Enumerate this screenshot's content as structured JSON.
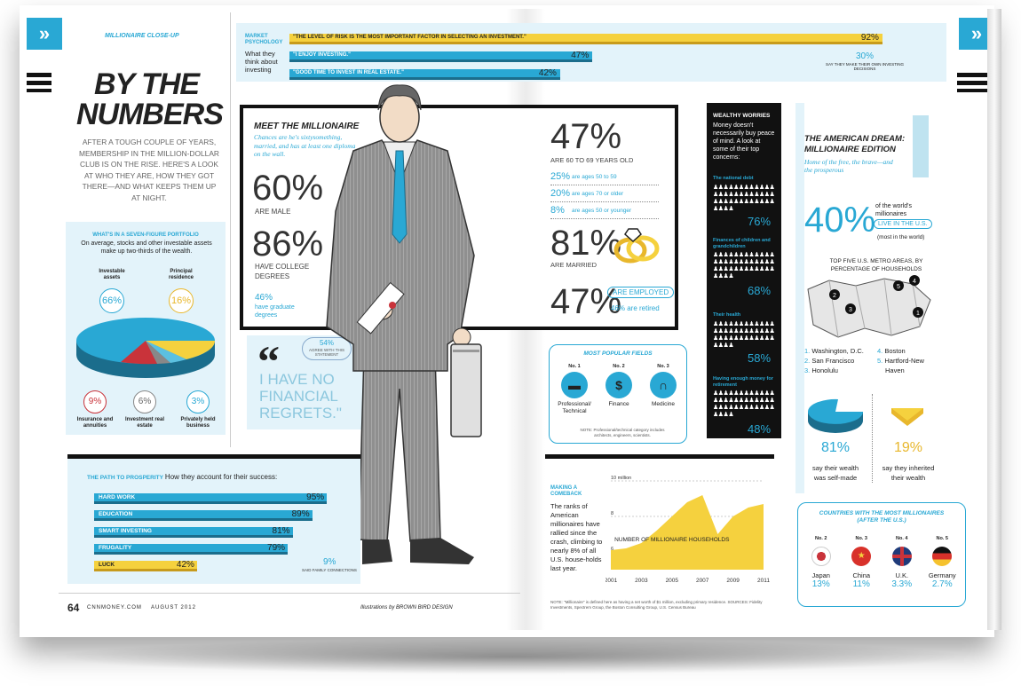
{
  "left": {
    "kicker": "MILLIONAIRE CLOSE-UP",
    "title1": "BY THE",
    "title2": "NUMBERS",
    "intro": "AFTER A TOUGH COUPLE OF YEARS, MEMBERSHIP IN THE MILLION-DOLLAR CLUB IS ON THE RISE. HERE'S A LOOK AT WHO THEY ARE, HOW THEY GOT THERE—AND WHAT KEEPS THEM UP AT NIGHT.",
    "portfolio": {
      "title": "WHAT'S IN A SEVEN-FIGURE PORTFOLIO",
      "subtitle": "On average, stocks and other investable assets make up two-thirds of the wealth.",
      "items": [
        {
          "label": "Investable assets",
          "pct": "66%"
        },
        {
          "label": "Principal residence",
          "pct": "16%"
        },
        {
          "label": "Insurance and annuities",
          "pct": "9%"
        },
        {
          "label": "Investment real estate",
          "pct": "6%"
        },
        {
          "label": "Privately held business",
          "pct": "3%"
        }
      ]
    },
    "path": {
      "title": "THE PATH TO PROSPERITY",
      "subtitle": "How they account for their success:",
      "bars": [
        {
          "label": "HARD WORK",
          "pct": "95%",
          "value": 95
        },
        {
          "label": "EDUCATION",
          "pct": "89%",
          "value": 89
        },
        {
          "label": "SMART INVESTING",
          "pct": "81%",
          "value": 81
        },
        {
          "label": "FRUGALITY",
          "pct": "79%",
          "value": 79
        },
        {
          "label": "LUCK",
          "pct": "42%",
          "value": 42
        }
      ],
      "family_pct": "9%",
      "family_label": "SAID FAMILY CONNECTIONS"
    },
    "footer_page": "64",
    "footer_site": "CNNMONEY.COM",
    "footer_date": "AUGUST 2012",
    "footer_credit": "Illustrations by BROWN BIRD DESIGN"
  },
  "psych": {
    "label": "MARKET PSYCHOLOGY",
    "sub": "What they think about investing",
    "bars": [
      {
        "label": "\"THE LEVEL OF RISK IS THE MOST IMPORTANT FACTOR IN SELECTING AN INVESTMENT.\"",
        "pct": "92%",
        "value": 92
      },
      {
        "label": "\"I ENJOY INVESTING.\"",
        "pct": "47%",
        "value": 47
      },
      {
        "label": "\"GOOD TIME TO INVEST IN REAL ESTATE.\"",
        "pct": "42%",
        "value": 42
      }
    ],
    "own_pct": "30%",
    "own_label": "SAY THEY MAKE THEIR OWN INVESTING DECISIONS"
  },
  "meet": {
    "title": "MEET THE MILLIONAIRE",
    "sub": "Chances are he's sixtysomething, married, and has at least one diploma on the wall.",
    "male_pct": "60%",
    "male_label": "ARE MALE",
    "college_pct": "86%",
    "college_label": "HAVE COLLEGE DEGREES",
    "grad_pct": "46%",
    "grad_label": "have graduate degrees",
    "age_pct": "47%",
    "age_label": "ARE 60 TO 69 YEARS OLD",
    "ages": [
      {
        "pct": "25%",
        "label": "are ages 50 to 59"
      },
      {
        "pct": "20%",
        "label": "are ages 70 or older"
      },
      {
        "pct": "8%",
        "label": "are ages 50 or younger"
      }
    ],
    "married_pct": "81%",
    "married_label": "ARE MARRIED",
    "employed_pct": "47%",
    "employed_label": "ARE EMPLOYED",
    "retired": "46% are retired"
  },
  "regrets": {
    "agree_pct": "54%",
    "agree_label": "AGREE WITH THIS STATEMENT",
    "quote": "I HAVE NO FINANCIAL REGRETS.\""
  },
  "fields": {
    "title": "MOST POPULAR FIELDS",
    "items": [
      {
        "rank": "No. 1",
        "label": "Professional/ Technical",
        "icon": "briefcase-icon"
      },
      {
        "rank": "No. 2",
        "label": "Finance",
        "icon": "money-bag-icon"
      },
      {
        "rank": "No. 3",
        "label": "Medicine",
        "icon": "stethoscope-icon"
      }
    ],
    "note": "NOTE: Professional/technical category includes architects, engineers, scientists."
  },
  "comeback": {
    "title": "MAKING A COMEBACK",
    "text": "The ranks of American millionaires have rallied since the crash, climbing to nearly 8% of all U.S. house-holds last year.",
    "note": "NOTE: \"Millionaire\" is defined here as having a net worth of $1 million, excluding primary residence. SOURCES: Fidelity Investments, Spectrem Group, the Boston Consulting Group, U.S. Census Bureau"
  },
  "chart_data": {
    "type": "area",
    "title": "",
    "series": [
      {
        "name": "NUMBER OF MILLIONAIRE HOUSEHOLDS",
        "values": [
          6.1,
          6.2,
          6.5,
          7.2,
          8.0,
          8.8,
          9.2,
          7.0,
          8.0,
          8.5,
          8.7
        ]
      }
    ],
    "x": [
      2001,
      2002,
      2003,
      2004,
      2005,
      2006,
      2007,
      2008,
      2009,
      2010,
      2011
    ],
    "xticks": [
      "2001",
      "2003",
      "2005",
      "2007",
      "2009",
      "2011"
    ],
    "yticks": [
      "6",
      "8",
      "10 million"
    ],
    "ylim": [
      5,
      10
    ],
    "xlabel": "",
    "ylabel": "",
    "grid": true,
    "color": "#f5d13e"
  },
  "worries": {
    "title": "WEALTHY WORRIES",
    "text": "Money doesn't necessarily buy peace of mind. A look at some of their top concerns:",
    "items": [
      {
        "label": "The national debt",
        "pct": "76%"
      },
      {
        "label": "Finances of children and grandchildren",
        "pct": "68%"
      },
      {
        "label": "Their health",
        "pct": "58%"
      },
      {
        "label": "Having enough money for retirement",
        "pct": "48%"
      }
    ]
  },
  "dream": {
    "title": "THE AMERICAN DREAM: MILLIONAIRE EDITION",
    "sub": "Home of the free, the brave—and the prosperous",
    "pct": "40%",
    "pct_text1": "of the world's millionaires",
    "pct_text2": "LIVE IN THE U.S.",
    "pct_text3": "(most in the world)",
    "metro_title": "TOP FIVE U.S. METRO AREAS, BY PERCENTAGE OF HOUSEHOLDS",
    "metros": [
      {
        "n": "1.",
        "name": "Washington, D.C."
      },
      {
        "n": "2.",
        "name": "San Francisco"
      },
      {
        "n": "3.",
        "name": "Honolulu"
      },
      {
        "n": "4.",
        "name": "Boston"
      },
      {
        "n": "5.",
        "name": "Hartford-New Haven"
      }
    ],
    "self_pct": "81%",
    "self_label": "say their wealth was self-made",
    "inherit_pct": "19%",
    "inherit_label": "say they inherited their wealth"
  },
  "countries": {
    "title": "COUNTRIES WITH THE MOST MILLIONAIRES (AFTER THE U.S.)",
    "items": [
      {
        "rank": "No. 2",
        "name": "Japan",
        "pct": "13%"
      },
      {
        "rank": "No. 3",
        "name": "China",
        "pct": "11%"
      },
      {
        "rank": "No. 4",
        "name": "U.K.",
        "pct": "3.3%"
      },
      {
        "rank": "No. 5",
        "name": "Germany",
        "pct": "2.7%"
      }
    ]
  }
}
